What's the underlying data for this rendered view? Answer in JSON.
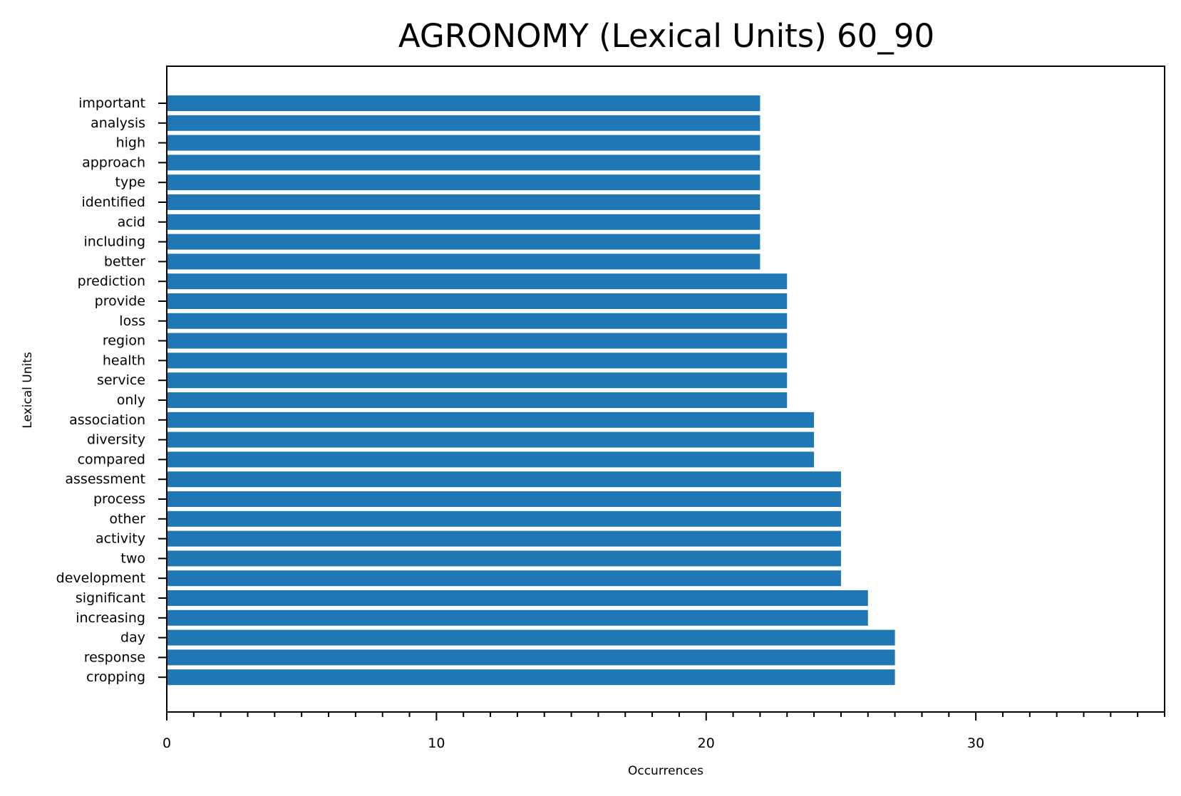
{
  "chart_data": {
    "type": "bar",
    "orientation": "horizontal",
    "title": "AGRONOMY (Lexical Units) 60_90",
    "xlabel": "Occurrences",
    "ylabel": "Lexical Units",
    "xlim": [
      0,
      37
    ],
    "xticks": [
      0,
      10,
      20,
      30
    ],
    "xtick_labels": [
      "0",
      "10",
      "20",
      "30"
    ],
    "minor_tick_step": 1,
    "grid": false,
    "bar_color": "#1f77b4",
    "categories": [
      "important",
      "analysis",
      "high",
      "approach",
      "type",
      "identified",
      "acid",
      "including",
      "better",
      "prediction",
      "provide",
      "loss",
      "region",
      "health",
      "service",
      "only",
      "association",
      "diversity",
      "compared",
      "assessment",
      "process",
      "other",
      "activity",
      "two",
      "development",
      "significant",
      "increasing",
      "day",
      "response",
      "cropping"
    ],
    "values": [
      22,
      22,
      22,
      22,
      22,
      22,
      22,
      22,
      22,
      23,
      23,
      23,
      23,
      23,
      23,
      23,
      24,
      24,
      24,
      25,
      25,
      25,
      25,
      25,
      25,
      26,
      26,
      27,
      27,
      27
    ]
  }
}
